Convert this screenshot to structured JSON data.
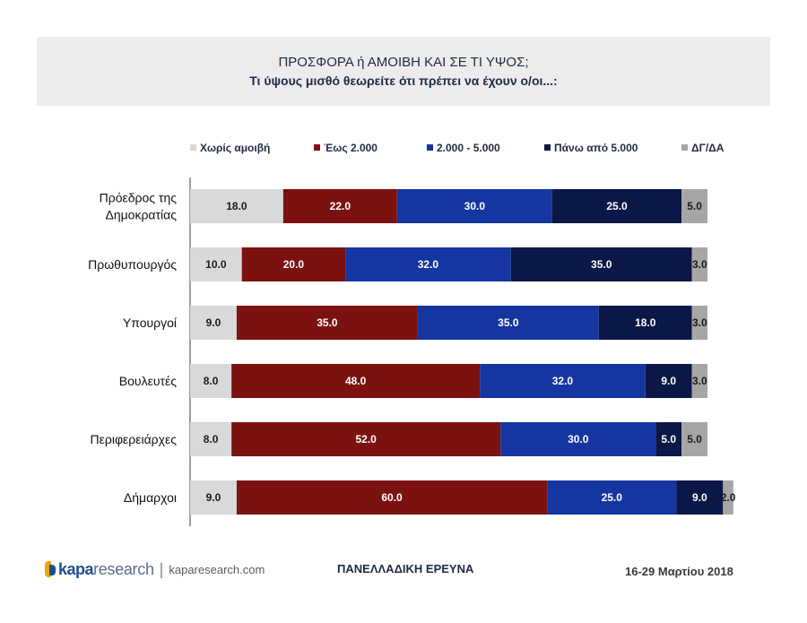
{
  "header": {
    "title": "ΠΡΟΣΦΟΡΑ ή ΑΜΟΙΒΗ ΚΑΙ ΣΕ ΤΙ ΥΨΟΣ;",
    "subtitle": "Τι ύψους μισθό θεωρείτε ότι πρέπει να έχουν ο/οι...:"
  },
  "chart_data": {
    "type": "bar",
    "orientation": "horizontal",
    "stacked": true,
    "categories": [
      [
        "Πρόεδρος της",
        "Δημοκρατίας"
      ],
      [
        "Πρωθυπουργός"
      ],
      [
        "Υπουργοί"
      ],
      [
        "Βουλευτές"
      ],
      [
        "Περιφερειάρχες"
      ],
      [
        "Δήμαρχοι"
      ]
    ],
    "series": [
      {
        "name": "Χωρίς αμοιβή",
        "color": "#d9d9d9",
        "label_color": "#1a1a1a",
        "values": [
          18.0,
          10.0,
          9.0,
          8.0,
          8.0,
          9.0
        ]
      },
      {
        "name": "Έως 2.000",
        "color": "#7b1210",
        "label_color": "#ffffff",
        "values": [
          22.0,
          20.0,
          35.0,
          48.0,
          52.0,
          60.0
        ]
      },
      {
        "name": "2.000 - 5.000",
        "color": "#1536a0",
        "label_color": "#ffffff",
        "values": [
          30.0,
          32.0,
          35.0,
          32.0,
          30.0,
          25.0
        ]
      },
      {
        "name": "Πάνω από 5.000",
        "color": "#0b1746",
        "label_color": "#ffffff",
        "values": [
          25.0,
          35.0,
          18.0,
          9.0,
          5.0,
          9.0
        ]
      },
      {
        "name": "ΔΓ/ΔΑ",
        "color": "#a6a6a6",
        "label_color": "#1a1a1a",
        "values": [
          5.0,
          3.0,
          3.0,
          3.0,
          5.0,
          2.0
        ]
      }
    ],
    "xlim": [
      0,
      100
    ],
    "legend": "top",
    "grid": false
  },
  "footer": {
    "logo_brand": "kapa",
    "logo_research": "research",
    "logo_url": "kaparesearch.com",
    "survey_label": "ΠΑΝΕΛΛΑΔΙΚΗ ΕΡΕΥΝΑ",
    "date": "16-29 Μαρτίου 2018"
  }
}
